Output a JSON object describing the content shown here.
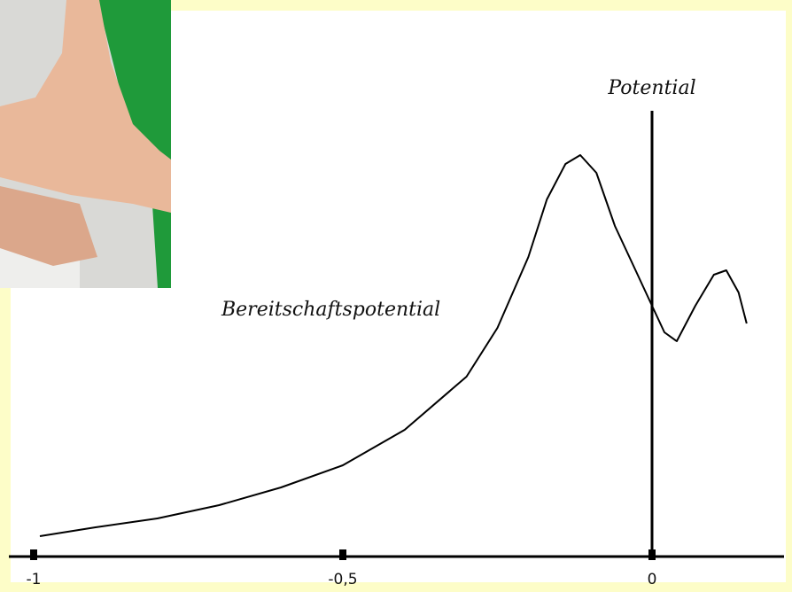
{
  "chart_data": {
    "type": "line",
    "x": [
      -0.99,
      -0.9,
      -0.8,
      -0.7,
      -0.6,
      -0.5,
      -0.4,
      -0.3,
      -0.25,
      -0.2,
      -0.17,
      -0.14,
      -0.116,
      -0.09,
      -0.06,
      -0.03,
      0,
      0.02,
      0.04,
      0.07,
      0.1,
      0.12,
      0.14,
      0.153
    ],
    "values": [
      4.6,
      6.6,
      8.6,
      11.6,
      15.6,
      20.6,
      28.6,
      40.6,
      51.6,
      67.6,
      80.6,
      88.6,
      90.6,
      86.6,
      74.6,
      65.6,
      56.6,
      50.6,
      48.6,
      56.6,
      63.6,
      64.6,
      59.6,
      52.6
    ],
    "color": "#000000",
    "xlim": [
      -1,
      0.2
    ],
    "xticks": [
      -1,
      {
        "value": -0.5,
        "label": "-0,5"
      },
      0
    ],
    "ylim": [
      0,
      100
    ],
    "annotations": [
      {
        "text": "Bereitschaftspotential"
      },
      {
        "text": "Potential",
        "x": 0
      }
    ]
  }
}
